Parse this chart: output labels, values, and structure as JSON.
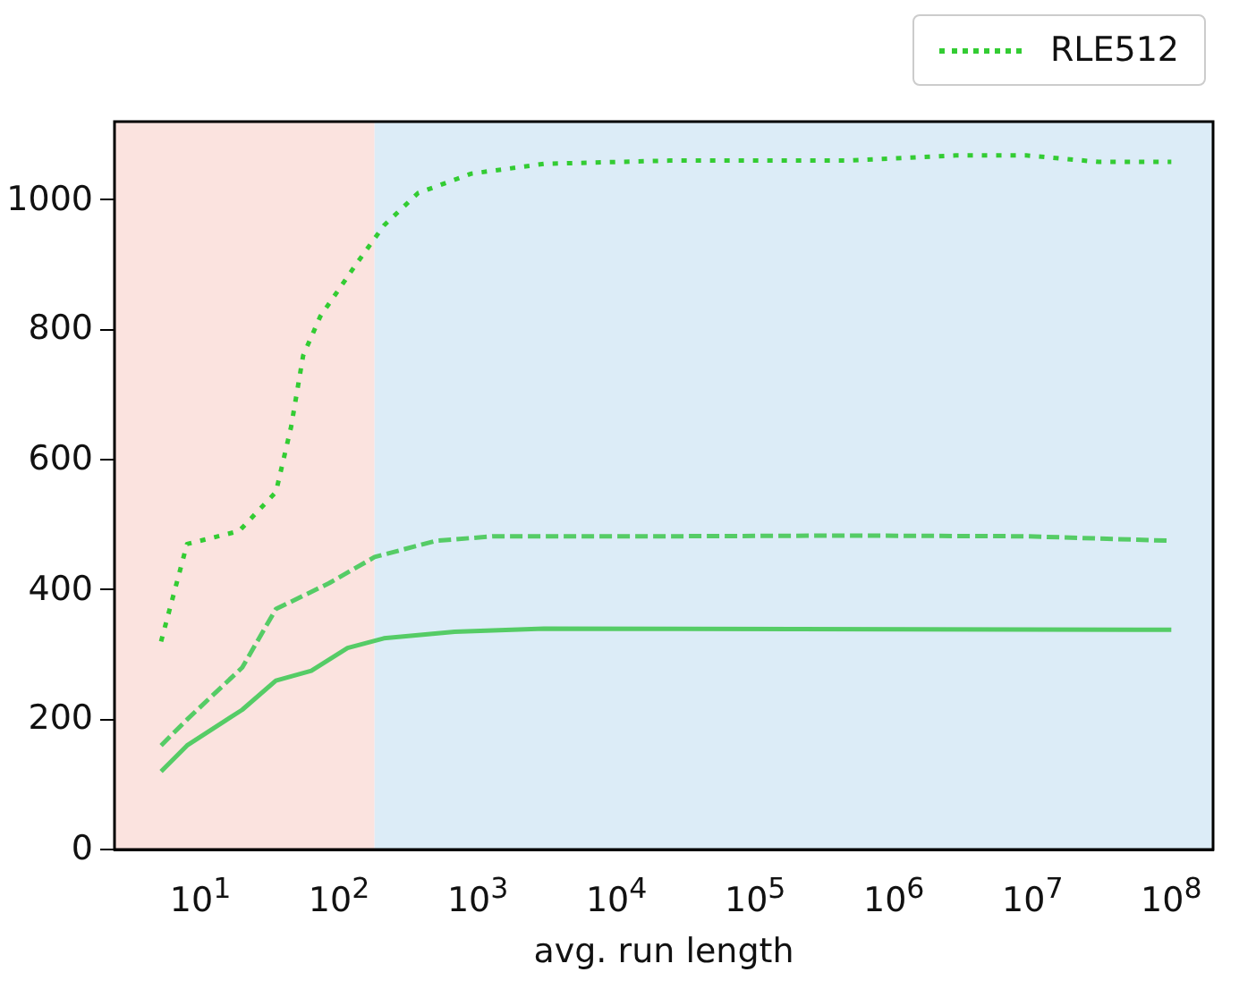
{
  "chart_data": {
    "type": "line",
    "xlabel": "avg. run length",
    "log": "x",
    "xlim": [
      2.4,
      200000000.0
    ],
    "ylim": [
      0,
      1120
    ],
    "xticks": [
      {
        "value": 10,
        "label": "10$^{1}$"
      },
      {
        "value": 100,
        "label": "10$^{2}$"
      },
      {
        "value": 1000,
        "label": "10$^{3}$"
      },
      {
        "value": 10000,
        "label": "10$^{4}$"
      },
      {
        "value": 100000,
        "label": "10$^{5}$"
      },
      {
        "value": 1000000,
        "label": "10$^{6}$"
      },
      {
        "value": 10000000,
        "label": "10$^{7}$"
      },
      {
        "value": 100000000,
        "label": "10$^{8}$"
      }
    ],
    "yticks": [
      0,
      200,
      400,
      600,
      800,
      1000
    ],
    "grid": false,
    "legend": "top right",
    "marker": "none",
    "bands": [
      {
        "axis": "x",
        "from": 2.4,
        "to": 180,
        "color": "#fbe3df"
      },
      {
        "axis": "x",
        "from": 180,
        "to": 200000000.0,
        "color": "#dcecf7"
      }
    ],
    "series": [
      {
        "name": "RLE512",
        "color": "#33cc33",
        "line_style": "dotted",
        "x": [
          5.2,
          8,
          19,
          35,
          45,
          55,
          73,
          132,
          210,
          370,
          900,
          3000,
          24000,
          470000,
          2800000,
          9000000,
          30000000,
          100000000
        ],
        "values": [
          320,
          470,
          490,
          550,
          650,
          760,
          820,
          900,
          960,
          1010,
          1040,
          1055,
          1060,
          1060,
          1068,
          1068,
          1058,
          1058
        ]
      },
      {
        "color": "#55cc66",
        "line_style": "dashed",
        "x": [
          5.2,
          8,
          20,
          35,
          85,
          180,
          500,
          1300,
          24000,
          470000,
          9000000,
          100000000
        ],
        "values": [
          160,
          200,
          280,
          370,
          410,
          450,
          475,
          482,
          482,
          483,
          482,
          475
        ]
      },
      {
        "color": "#55cc66",
        "line_style": "solid",
        "x": [
          5.2,
          8,
          20,
          35,
          63,
          115,
          210,
          680,
          3000,
          100000000
        ],
        "values": [
          120,
          160,
          215,
          260,
          275,
          310,
          325,
          335,
          340,
          338
        ]
      }
    ]
  }
}
